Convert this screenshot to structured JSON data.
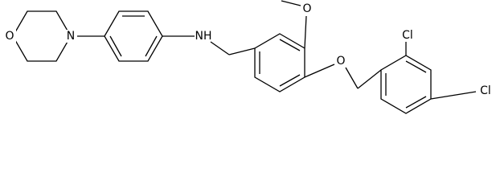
{
  "atoms": [
    {
      "label": "O"
    },
    {
      "label": "N"
    },
    {
      "label": "NH"
    },
    {
      "label": "O"
    },
    {
      "label": "O"
    },
    {
      "label": "Cl"
    },
    {
      "label": "Cl"
    }
  ]
}
